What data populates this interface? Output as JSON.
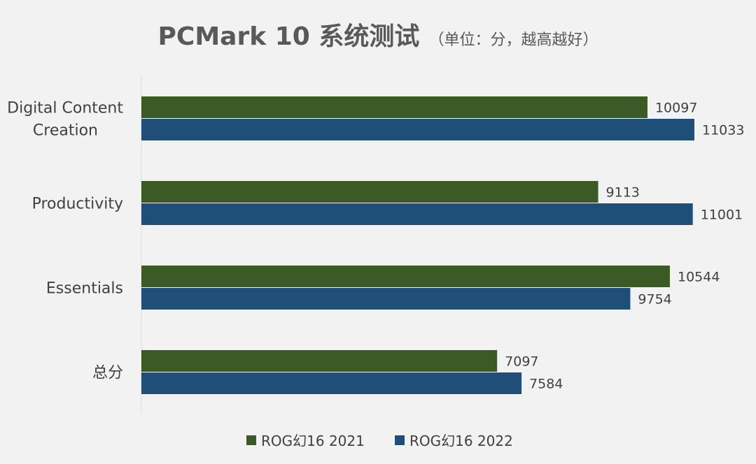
{
  "chart_data": {
    "type": "bar",
    "orientation": "horizontal",
    "title": "PCMark 10 系统测试",
    "subtitle": "（单位：分，越高越好）",
    "categories": [
      "Digital Content Creation",
      "Productivity",
      "Essentials",
      "总分"
    ],
    "series": [
      {
        "name": "ROG幻16 2021",
        "color": "#3b5a26",
        "values": [
          10097,
          9113,
          10544,
          7097
        ]
      },
      {
        "name": "ROG幻16 2022",
        "color": "#1f4e79",
        "values": [
          11033,
          11001,
          9754,
          7584
        ]
      }
    ],
    "xlim": [
      0,
      12000
    ],
    "grid": false,
    "legend_position": "bottom"
  }
}
